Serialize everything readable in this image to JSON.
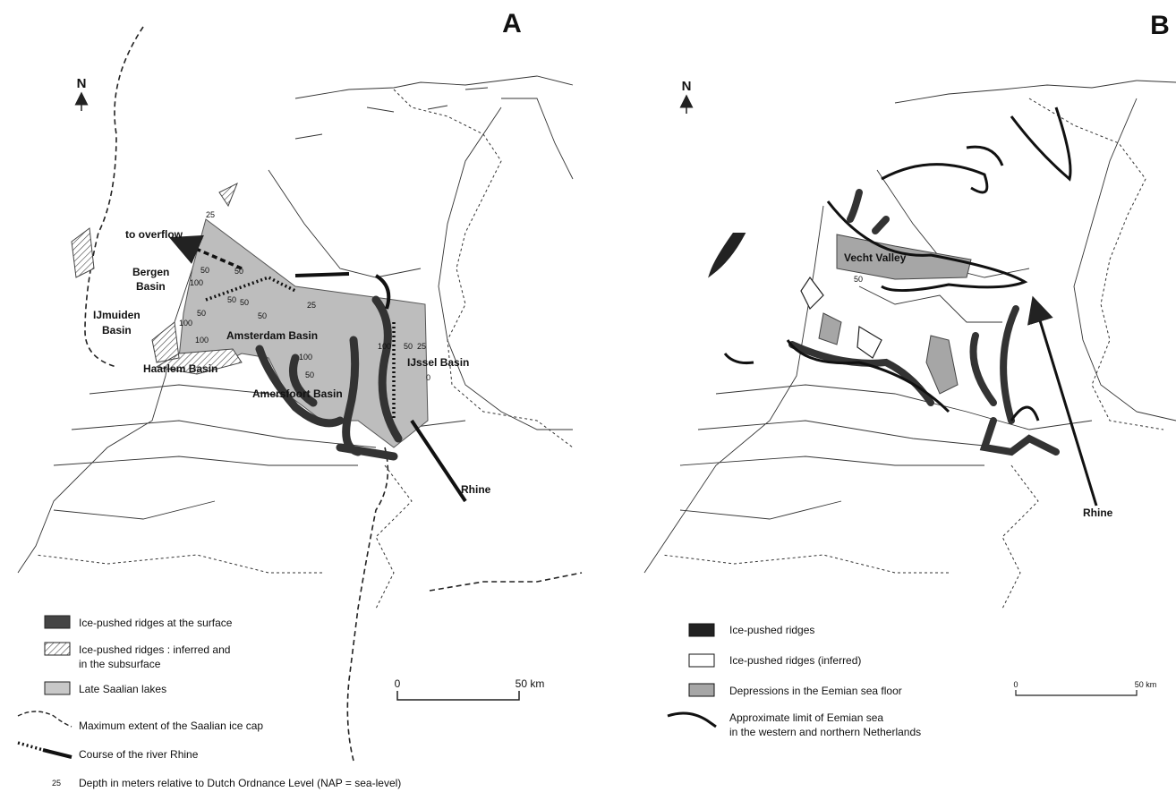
{
  "panel_a": {
    "letter": "A",
    "north": "N",
    "places": {
      "overflow": "to overflow",
      "bergen": [
        "Bergen",
        "Basin"
      ],
      "ijmuiden": [
        "IJmuiden",
        "Basin"
      ],
      "haarlem": "Haarlem Basin",
      "amsterdam": "Amsterdam Basin",
      "amersfoort": "Amersfoort Basin",
      "ijssel": "IJssel Basin",
      "rhine": "Rhine"
    },
    "depth_labels": [
      25,
      50,
      100,
      50,
      50,
      50,
      50,
      50,
      100,
      100,
      25,
      100,
      50,
      100,
      50,
      25,
      0
    ],
    "legend": {
      "ridges_surface": "Ice-pushed ridges at the surface",
      "ridges_inferred": [
        "Ice-pushed ridges : inferred and",
        "in the subsurface"
      ],
      "lakes": "Late Saalian lakes",
      "ice_cap": "Maximum extent of the Saalian ice cap",
      "rhine_course": "Course of the river Rhine",
      "depth_sample": "25",
      "depth": "Depth in meters relative to Dutch Ordnance Level (NAP = sea-level)"
    },
    "scale": {
      "start": "0",
      "end": "50 km"
    }
  },
  "panel_b": {
    "letter": "B",
    "north": "N",
    "places": {
      "vecht": "Vecht Valley",
      "depth": "50",
      "rhine": "Rhine"
    },
    "legend": {
      "ridges": "Ice-pushed ridges",
      "ridges_inferred": "Ice-pushed ridges (inferred)",
      "depressions": "Depressions in the Eemian sea floor",
      "limit": [
        "Approximate limit of Eemian sea",
        "in the western and northern Netherlands"
      ]
    },
    "scale": {
      "start": "0",
      "end": "50 km"
    }
  }
}
